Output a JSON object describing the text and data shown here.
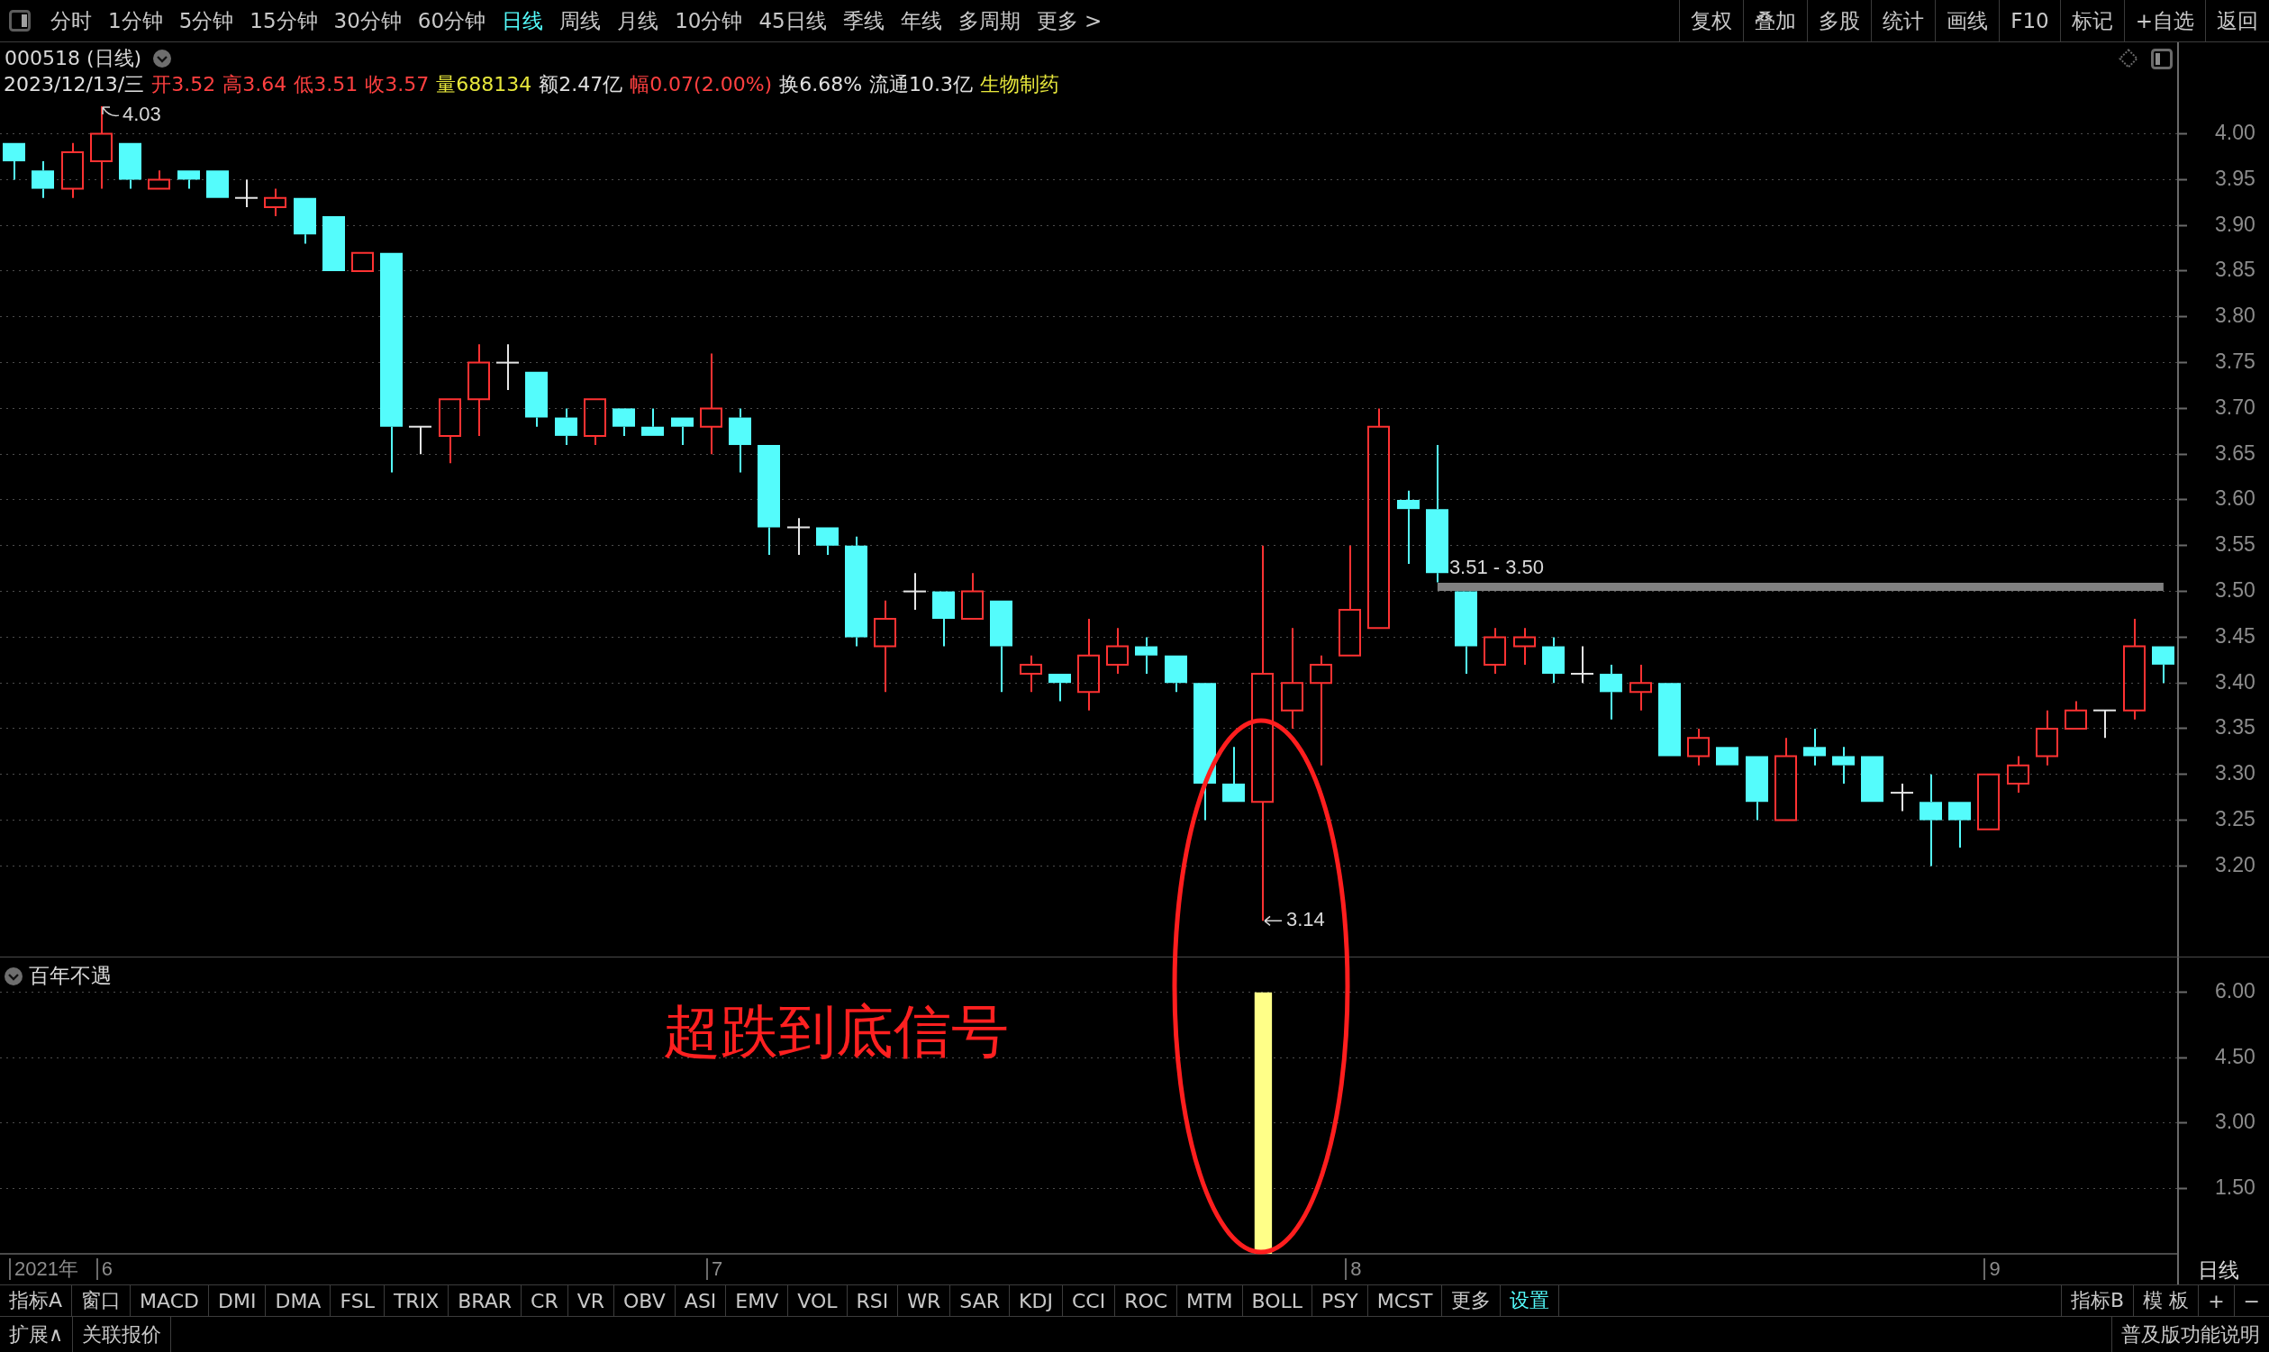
{
  "chart_data": [
    {
      "type": "candlestick",
      "title": "000518 (日线)",
      "subtitle": "2023/12/13/三 开3.52 高3.64 低3.51 收3.57 量688134 额2.47亿 幅0.07(2.00%) 换6.68% 流通10.3亿 生物制药",
      "categories": [
        null,
        null,
        null,
        null,
        null,
        null,
        null,
        null,
        null,
        null,
        null,
        null,
        null,
        null,
        null,
        null,
        null,
        null,
        null,
        null,
        null,
        null,
        null,
        null,
        null,
        null,
        null,
        null,
        null,
        null,
        null,
        null,
        null,
        null,
        null,
        null,
        null,
        null,
        null,
        null,
        null,
        null,
        null,
        null,
        null,
        null,
        null,
        null,
        null,
        null,
        null,
        null,
        null,
        null,
        null,
        null,
        null,
        null,
        null,
        null,
        null,
        null,
        null,
        null,
        null,
        null,
        null,
        null,
        null,
        null,
        null,
        null,
        null,
        null,
        null
      ],
      "ohlc": [
        [
          3.99,
          3.99,
          3.95,
          3.97
        ],
        [
          3.96,
          3.97,
          3.93,
          3.94
        ],
        [
          3.94,
          3.99,
          3.93,
          3.98
        ],
        [
          3.97,
          4.03,
          3.94,
          4.0
        ],
        [
          3.99,
          3.99,
          3.94,
          3.95
        ],
        [
          3.94,
          3.96,
          3.94,
          3.95
        ],
        [
          3.96,
          3.96,
          3.94,
          3.95
        ],
        [
          3.96,
          3.96,
          3.93,
          3.93
        ],
        [
          3.93,
          3.95,
          3.92,
          3.93
        ],
        [
          3.92,
          3.94,
          3.91,
          3.93
        ],
        [
          3.93,
          3.93,
          3.88,
          3.89
        ],
        [
          3.91,
          3.91,
          3.85,
          3.85
        ],
        [
          3.85,
          3.87,
          3.85,
          3.87
        ],
        [
          3.87,
          3.87,
          3.63,
          3.68
        ],
        [
          3.68,
          3.68,
          3.65,
          3.68
        ],
        [
          3.67,
          3.71,
          3.64,
          3.71
        ],
        [
          3.71,
          3.77,
          3.67,
          3.75
        ],
        [
          3.75,
          3.77,
          3.72,
          3.75
        ],
        [
          3.74,
          3.74,
          3.68,
          3.69
        ],
        [
          3.69,
          3.7,
          3.66,
          3.67
        ],
        [
          3.67,
          3.71,
          3.66,
          3.71
        ],
        [
          3.7,
          3.7,
          3.67,
          3.68
        ],
        [
          3.68,
          3.7,
          3.67,
          3.67
        ],
        [
          3.69,
          3.69,
          3.66,
          3.68
        ],
        [
          3.68,
          3.76,
          3.65,
          3.7
        ],
        [
          3.69,
          3.7,
          3.63,
          3.66
        ],
        [
          3.66,
          3.66,
          3.54,
          3.57
        ],
        [
          3.57,
          3.58,
          3.54,
          3.57
        ],
        [
          3.57,
          3.57,
          3.54,
          3.55
        ],
        [
          3.55,
          3.56,
          3.44,
          3.45
        ],
        [
          3.44,
          3.49,
          3.39,
          3.47
        ],
        [
          3.5,
          3.52,
          3.48,
          3.5
        ],
        [
          3.5,
          3.5,
          3.44,
          3.47
        ],
        [
          3.47,
          3.52,
          3.47,
          3.5
        ],
        [
          3.49,
          3.49,
          3.39,
          3.44
        ],
        [
          3.41,
          3.43,
          3.39,
          3.42
        ],
        [
          3.41,
          3.41,
          3.38,
          3.4
        ],
        [
          3.39,
          3.47,
          3.37,
          3.43
        ],
        [
          3.42,
          3.46,
          3.41,
          3.44
        ],
        [
          3.44,
          3.45,
          3.41,
          3.43
        ],
        [
          3.43,
          3.43,
          3.39,
          3.4
        ],
        [
          3.4,
          3.4,
          3.25,
          3.29
        ],
        [
          3.29,
          3.33,
          3.27,
          3.27
        ],
        [
          3.27,
          3.55,
          3.14,
          3.41
        ],
        [
          3.37,
          3.46,
          3.35,
          3.4
        ],
        [
          3.4,
          3.43,
          3.31,
          3.42
        ],
        [
          3.43,
          3.55,
          3.43,
          3.48
        ],
        [
          3.46,
          3.7,
          3.46,
          3.68
        ],
        [
          3.6,
          3.61,
          3.53,
          3.59
        ],
        [
          3.59,
          3.66,
          3.51,
          3.52
        ],
        [
          3.5,
          3.5,
          3.41,
          3.44
        ],
        [
          3.42,
          3.46,
          3.41,
          3.45
        ],
        [
          3.44,
          3.46,
          3.42,
          3.45
        ],
        [
          3.44,
          3.45,
          3.4,
          3.41
        ],
        [
          3.41,
          3.44,
          3.4,
          3.41
        ],
        [
          3.41,
          3.42,
          3.36,
          3.39
        ],
        [
          3.39,
          3.42,
          3.37,
          3.4
        ],
        [
          3.4,
          3.4,
          3.32,
          3.32
        ],
        [
          3.32,
          3.35,
          3.31,
          3.34
        ],
        [
          3.33,
          3.33,
          3.31,
          3.31
        ],
        [
          3.32,
          3.32,
          3.25,
          3.27
        ],
        [
          3.25,
          3.34,
          3.25,
          3.32
        ],
        [
          3.33,
          3.35,
          3.31,
          3.32
        ],
        [
          3.32,
          3.33,
          3.29,
          3.31
        ],
        [
          3.32,
          3.32,
          3.27,
          3.27
        ],
        [
          3.28,
          3.29,
          3.26,
          3.28
        ],
        [
          3.27,
          3.3,
          3.2,
          3.25
        ],
        [
          3.27,
          3.27,
          3.22,
          3.25
        ],
        [
          3.24,
          3.3,
          3.24,
          3.3
        ],
        [
          3.29,
          3.32,
          3.28,
          3.31
        ],
        [
          3.32,
          3.37,
          3.31,
          3.35
        ],
        [
          3.35,
          3.38,
          3.35,
          3.37
        ],
        [
          3.37,
          3.37,
          3.34,
          3.37
        ],
        [
          3.37,
          3.47,
          3.36,
          3.44
        ],
        [
          3.44,
          3.44,
          3.4,
          3.42
        ]
      ],
      "colors": [
        "#54fcfc",
        "#54fcfc",
        "#ff3232",
        "#ff3232",
        "#54fcfc",
        "#ff3232",
        "#54fcfc",
        "#54fcfc",
        "#e6e6e6",
        "#ff3232",
        "#54fcfc",
        "#54fcfc",
        "#ff3232",
        "#54fcfc",
        "#e6e6e6",
        "#ff3232",
        "#ff3232",
        "#e6e6e6",
        "#54fcfc",
        "#54fcfc",
        "#ff3232",
        "#54fcfc",
        "#54fcfc",
        "#54fcfc",
        "#ff3232",
        "#54fcfc",
        "#54fcfc",
        "#e6e6e6",
        "#54fcfc",
        "#54fcfc",
        "#ff3232",
        "#e6e6e6",
        "#54fcfc",
        "#ff3232",
        "#54fcfc",
        "#ff3232",
        "#54fcfc",
        "#ff3232",
        "#ff3232",
        "#54fcfc",
        "#54fcfc",
        "#54fcfc",
        "#54fcfc",
        "#ff3232",
        "#ff3232",
        "#ff3232",
        "#ff3232",
        "#ff3232",
        "#54fcfc",
        "#54fcfc",
        "#54fcfc",
        "#ff3232",
        "#ff3232",
        "#54fcfc",
        "#e6e6e6",
        "#54fcfc",
        "#ff3232",
        "#54fcfc",
        "#ff3232",
        "#54fcfc",
        "#54fcfc",
        "#ff3232",
        "#54fcfc",
        "#54fcfc",
        "#54fcfc",
        "#e6e6e6",
        "#54fcfc",
        "#54fcfc",
        "#ff3232",
        "#ff3232",
        "#ff3232",
        "#ff3232",
        "#e6e6e6",
        "#ff3232",
        "#54fcfc"
      ],
      "series": [
        {
          "type": "line",
          "name": "3.51 - 3.50",
          "color": "#808080",
          "values": [
            null,
            null,
            null,
            null,
            null,
            null,
            null,
            null,
            null,
            null,
            null,
            null,
            null,
            null,
            null,
            null,
            null,
            null,
            null,
            null,
            null,
            null,
            null,
            null,
            null,
            null,
            null,
            null,
            null,
            null,
            null,
            null,
            null,
            null,
            null,
            null,
            null,
            null,
            null,
            null,
            null,
            null,
            null,
            null,
            null,
            null,
            null,
            null,
            null,
            3.505,
            3.505,
            3.505,
            3.505,
            3.505,
            3.505,
            3.505,
            3.505,
            3.505,
            3.505,
            3.505,
            3.505,
            3.505,
            3.505,
            3.505,
            3.505,
            3.505,
            3.505,
            3.505,
            3.505,
            3.505,
            3.505,
            3.505,
            3.505,
            3.505,
            3.505
          ]
        }
      ],
      "ylim": [
        3.1,
        4.1
      ],
      "yticks": [
        {
          "value": 3.2,
          "label": "3.20"
        },
        {
          "value": 3.25,
          "label": "3.25"
        },
        {
          "value": 3.3,
          "label": "3.30"
        },
        {
          "value": 3.35,
          "label": "3.35"
        },
        {
          "value": 3.4,
          "label": "3.40"
        },
        {
          "value": 3.45,
          "label": "3.45"
        },
        {
          "value": 3.5,
          "label": "3.50"
        },
        {
          "value": 3.55,
          "label": "3.55"
        },
        {
          "value": 3.6,
          "label": "3.60"
        },
        {
          "value": 3.65,
          "label": "3.65"
        },
        {
          "value": 3.7,
          "label": "3.70"
        },
        {
          "value": 3.75,
          "label": "3.75"
        },
        {
          "value": 3.8,
          "label": "3.80"
        },
        {
          "value": 3.85,
          "label": "3.85"
        },
        {
          "value": 3.9,
          "label": "3.90"
        },
        {
          "value": 3.95,
          "label": "3.95"
        },
        {
          "value": 4.0,
          "label": "4.00"
        }
      ],
      "grid": "y",
      "tick_labels": "y",
      "annotations": [
        "4.03",
        "3.14",
        "分时",
        "1分钟",
        "5分钟",
        "15分钟",
        "30分钟",
        "60分钟",
        "日线",
        "周线",
        "月线",
        "10分钟",
        "45日线",
        "季线",
        "年线",
        "多周期",
        "更多 >",
        "复权",
        "叠加",
        "多股",
        "统计",
        "画线",
        "F10",
        "标记",
        "+自选",
        "返回"
      ]
    },
    {
      "type": "bar",
      "title": "百年不遇",
      "categories": [
        "2021年",
        null,
        null,
        "6",
        null,
        null,
        null,
        null,
        null,
        null,
        null,
        null,
        null,
        null,
        null,
        null,
        null,
        null,
        null,
        null,
        null,
        null,
        null,
        null,
        "7",
        null,
        null,
        null,
        null,
        null,
        null,
        null,
        null,
        null,
        null,
        null,
        null,
        null,
        null,
        null,
        null,
        null,
        null,
        null,
        null,
        null,
        "8",
        null,
        null,
        null,
        null,
        null,
        null,
        null,
        null,
        null,
        null,
        null,
        null,
        null,
        null,
        null,
        null,
        null,
        null,
        null,
        null,
        null,
        "9",
        null,
        null,
        null,
        null,
        null,
        null
      ],
      "values": [
        null,
        null,
        null,
        null,
        null,
        null,
        null,
        null,
        null,
        null,
        null,
        null,
        null,
        null,
        null,
        null,
        null,
        null,
        null,
        null,
        null,
        null,
        null,
        null,
        null,
        null,
        null,
        null,
        null,
        null,
        null,
        null,
        null,
        null,
        null,
        null,
        null,
        null,
        null,
        null,
        null,
        null,
        null,
        6,
        null,
        null,
        null,
        null,
        null,
        null,
        null,
        null,
        null,
        null,
        null,
        null,
        null,
        null,
        null,
        null,
        null,
        null,
        null,
        null,
        null,
        null,
        null,
        null,
        null,
        null,
        null,
        null,
        null,
        null,
        null
      ],
      "color": "#ffff88",
      "ylim": [
        0,
        6.8
      ],
      "yticks": [
        {
          "value": 1.5,
          "label": "1.50"
        },
        {
          "value": 3,
          "label": "3.00"
        },
        {
          "value": 4.5,
          "label": "4.50"
        },
        {
          "value": 6,
          "label": "6.00"
        }
      ],
      "grid": "y",
      "annotations": [
        "超跌到底信号",
        "指标A",
        "窗口",
        "MACD",
        "DMI",
        "DMA",
        "FSL",
        "TRIX",
        "BRAR",
        "CR",
        "VR",
        "OBV",
        "ASI",
        "EMV",
        "VOL",
        "RSI",
        "WR",
        "SAR",
        "KDJ",
        "CCI",
        "ROC",
        "MTM",
        "BOLL",
        "PSY",
        "MCST",
        "更多",
        "设置",
        "指标B",
        "模 板",
        "+",
        "−",
        "扩展∧",
        "关联报价",
        "普及版功能说明",
        "日线"
      ]
    }
  ]
}
